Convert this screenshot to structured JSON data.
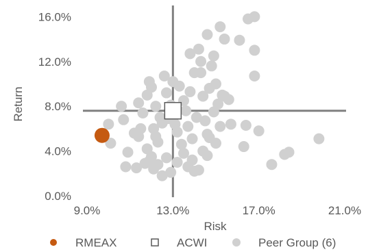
{
  "chart_data": {
    "type": "scatter",
    "xlabel": "Risk",
    "ylabel": "Return",
    "xlim": [
      9.0,
      21.0
    ],
    "ylim": [
      0.0,
      17.0
    ],
    "x_ticks": [
      9.0,
      13.0,
      17.0,
      21.0
    ],
    "x_tick_labels": [
      "9.0%",
      "13.0%",
      "17.0%",
      "21.0%"
    ],
    "y_ticks": [
      0.0,
      4.0,
      8.0,
      12.0,
      16.0
    ],
    "y_tick_labels": [
      "0.0%",
      "4.0%",
      "8.0%",
      "12.0%",
      "16.0%"
    ],
    "grid": false,
    "crosshair": {
      "x": 13.0,
      "y": 7.6,
      "color": "#808080"
    },
    "legend_position": "bottom",
    "series": [
      {
        "name": "Peer Group (6)",
        "marker": "circle",
        "color": "#d0d0d0",
        "points": [
          [
            10.6,
            8.0
          ],
          [
            10.7,
            6.8
          ],
          [
            10.9,
            3.9
          ],
          [
            11.2,
            5.6
          ],
          [
            11.4,
            8.3
          ],
          [
            11.6,
            7.4
          ],
          [
            11.8,
            9.0
          ],
          [
            11.9,
            10.2
          ],
          [
            12.0,
            9.7
          ],
          [
            12.1,
            6.0
          ],
          [
            12.2,
            5.3
          ],
          [
            12.3,
            4.8
          ],
          [
            12.4,
            7.0
          ],
          [
            12.5,
            6.5
          ],
          [
            12.6,
            10.7
          ],
          [
            12.7,
            9.2
          ],
          [
            12.8,
            6.9
          ],
          [
            12.9,
            8.1
          ],
          [
            13.0,
            10.2
          ],
          [
            13.1,
            6.4
          ],
          [
            13.2,
            5.7
          ],
          [
            13.3,
            9.8
          ],
          [
            13.4,
            4.6
          ],
          [
            13.5,
            8.5
          ],
          [
            13.6,
            7.6
          ],
          [
            13.7,
            6.2
          ],
          [
            13.8,
            9.3
          ],
          [
            13.9,
            5.1
          ],
          [
            14.0,
            11.0
          ],
          [
            14.1,
            7.0
          ],
          [
            14.2,
            13.1
          ],
          [
            14.3,
            12.0
          ],
          [
            14.4,
            8.9
          ],
          [
            14.5,
            6.7
          ],
          [
            14.6,
            5.5
          ],
          [
            14.7,
            9.6
          ],
          [
            14.8,
            11.6
          ],
          [
            14.9,
            12.5
          ],
          [
            15.0,
            10.0
          ],
          [
            15.1,
            8.2
          ],
          [
            15.2,
            6.2
          ],
          [
            15.3,
            9.0
          ],
          [
            15.4,
            14.0
          ],
          [
            15.6,
            8.6
          ],
          [
            16.1,
            13.9
          ],
          [
            16.5,
            15.8
          ],
          [
            16.8,
            16.0
          ],
          [
            16.8,
            13.0
          ],
          [
            16.8,
            10.7
          ],
          [
            16.4,
            6.3
          ],
          [
            17.0,
            5.8
          ],
          [
            16.3,
            4.4
          ],
          [
            17.6,
            2.8
          ],
          [
            18.2,
            3.7
          ],
          [
            18.4,
            3.9
          ],
          [
            19.8,
            5.1
          ],
          [
            15.0,
            4.7
          ],
          [
            14.6,
            3.6
          ],
          [
            14.2,
            2.3
          ],
          [
            13.7,
            2.6
          ],
          [
            13.2,
            3.0
          ],
          [
            12.9,
            2.1
          ],
          [
            12.5,
            1.8
          ],
          [
            12.1,
            2.4
          ],
          [
            11.7,
            2.9
          ],
          [
            11.3,
            2.5
          ],
          [
            10.8,
            2.6
          ],
          [
            10.1,
            4.7
          ],
          [
            10.0,
            6.4
          ],
          [
            11.5,
            6.0
          ],
          [
            12.0,
            3.5
          ],
          [
            13.5,
            3.8
          ],
          [
            14.0,
            2.2
          ],
          [
            14.4,
            4.0
          ],
          [
            14.7,
            5.2
          ],
          [
            13.1,
            7.2
          ],
          [
            12.2,
            8.0
          ],
          [
            11.8,
            4.2
          ],
          [
            13.9,
            3.2
          ],
          [
            12.7,
            3.4
          ],
          [
            12.3,
            2.8
          ],
          [
            13.8,
            12.7
          ],
          [
            14.6,
            14.4
          ],
          [
            15.2,
            15.1
          ],
          [
            14.3,
            11.0
          ],
          [
            15.4,
            8.9
          ],
          [
            14.9,
            7.5
          ],
          [
            15.7,
            6.4
          ],
          [
            11.9,
            3.1
          ],
          [
            11.4,
            5.3
          ]
        ]
      },
      {
        "name": "ACWI",
        "marker": "square",
        "color": "#ffffff",
        "stroke": "#595959",
        "points": [
          [
            13.0,
            7.6
          ]
        ]
      },
      {
        "name": "RMEAX",
        "marker": "circle",
        "color": "#c55a11",
        "points": [
          [
            9.7,
            5.4
          ]
        ]
      }
    ],
    "legend": [
      {
        "label": "RMEAX",
        "marker": "circle",
        "color": "#c55a11"
      },
      {
        "label": "ACWI",
        "marker": "square",
        "color": "#ffffff",
        "stroke": "#595959"
      },
      {
        "label": "Peer Group (6)",
        "marker": "circle",
        "color": "#d0d0d0"
      }
    ]
  }
}
